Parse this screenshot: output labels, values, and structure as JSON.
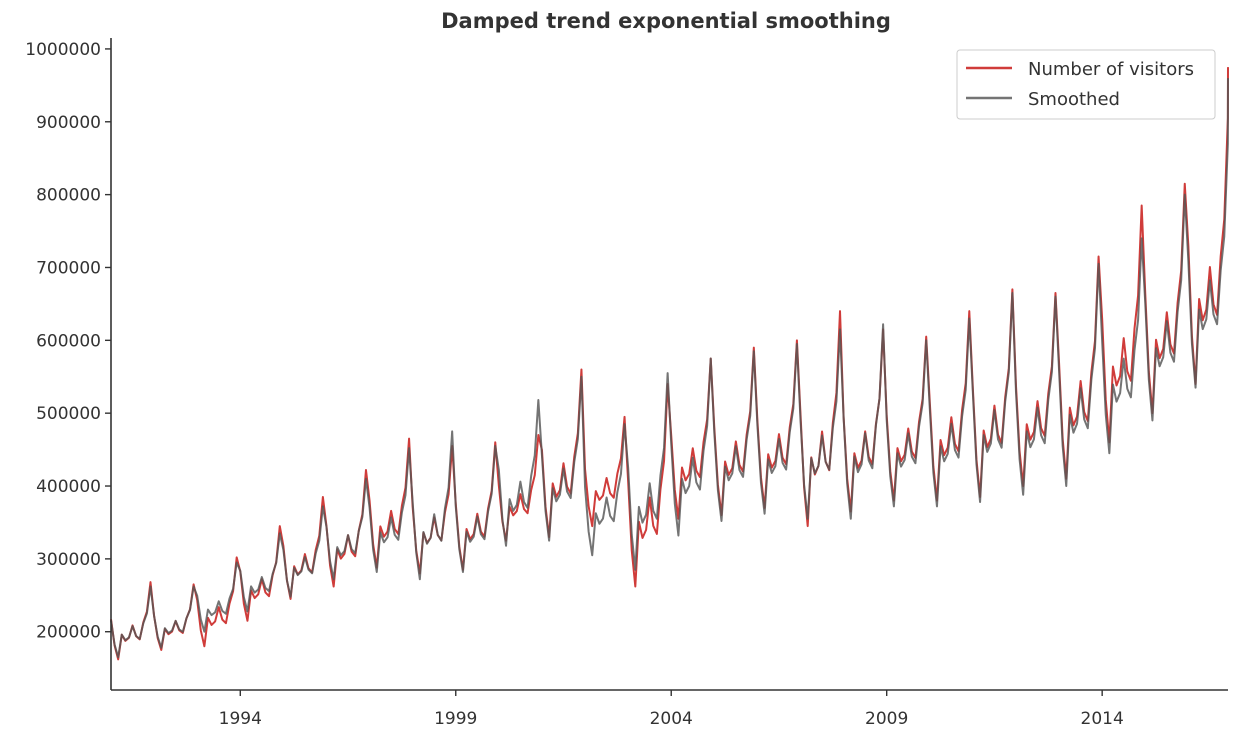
{
  "chart_data": {
    "type": "line",
    "title": "Damped trend exponential smoothing",
    "xlabel": "",
    "ylabel": "",
    "xlim": [
      "1991-01",
      "2017-01"
    ],
    "ylim": [
      120000,
      1015000
    ],
    "x_ticks": [
      "1994",
      "1999",
      "2004",
      "2009",
      "2014"
    ],
    "y_ticks": [
      "200000",
      "300000",
      "400000",
      "500000",
      "600000",
      "700000",
      "800000",
      "900000",
      "1000000"
    ],
    "grid": false,
    "legend_position": "top-right",
    "colors": {
      "visitors": "#d03c3a",
      "smoothed": "#555555",
      "axis": "#333333"
    },
    "series": [
      {
        "name": "Number of visitors",
        "years": [
          1991,
          1992,
          1993,
          1994,
          1995,
          1996,
          1997,
          1998,
          1999,
          2000,
          2001,
          2002,
          2003,
          2004,
          2005,
          2006,
          2007,
          2008,
          2009,
          2010,
          2011,
          2012,
          2013,
          2014,
          2015,
          2016
        ],
        "annual_base": [
          185000,
          205000,
          228000,
          255000,
          285000,
          320000,
          345000,
          340000,
          360000,
          385000,
          395000,
          400000,
          390000,
          435000,
          450000,
          465000,
          470000,
          460000,
          445000,
          475000,
          490000,
          505000,
          530000,
          570000,
          620000,
          680000
        ],
        "annual_peak": [
          268000,
          265000,
          302000,
          345000,
          385000,
          422000,
          465000,
          455000,
          460000,
          470000,
          560000,
          495000,
          540000,
          575000,
          590000,
          600000,
          640000,
          615000,
          605000,
          640000,
          670000,
          665000,
          715000,
          785000,
          815000,
          905000
        ],
        "annual_trough": [
          162000,
          175000,
          180000,
          215000,
          245000,
          262000,
          288000,
          280000,
          285000,
          325000,
          330000,
          345000,
          262000,
          355000,
          360000,
          370000,
          345000,
          365000,
          380000,
          380000,
          385000,
          400000,
          410000,
          460000,
          500000,
          540000
        ],
        "final_value": 975000
      },
      {
        "name": "Smoothed",
        "years": [
          1991,
          1992,
          1993,
          1994,
          1995,
          1996,
          1997,
          1998,
          1999,
          2000,
          2001,
          2002,
          2003,
          2004,
          2005,
          2006,
          2007,
          2008,
          2009,
          2010,
          2011,
          2012,
          2013,
          2014,
          2015,
          2016
        ],
        "annual_base": [
          185000,
          203000,
          226000,
          252000,
          282000,
          316000,
          342000,
          338000,
          358000,
          383000,
          393000,
          398000,
          392000,
          432000,
          448000,
          462000,
          468000,
          458000,
          444000,
          472000,
          488000,
          503000,
          528000,
          566000,
          615000,
          672000
        ],
        "annual_peak": [
          262000,
          262000,
          295000,
          335000,
          372000,
          410000,
          452000,
          475000,
          455000,
          518000,
          550000,
          485000,
          555000,
          575000,
          585000,
          595000,
          615000,
          622000,
          600000,
          630000,
          665000,
          660000,
          705000,
          740000,
          800000,
          870000
        ],
        "annual_trough": [
          165000,
          178000,
          200000,
          228000,
          248000,
          272000,
          282000,
          272000,
          282000,
          318000,
          325000,
          305000,
          285000,
          332000,
          352000,
          362000,
          355000,
          355000,
          372000,
          372000,
          378000,
          388000,
          400000,
          445000,
          490000,
          535000
        ],
        "final_value": 960000
      }
    ]
  }
}
